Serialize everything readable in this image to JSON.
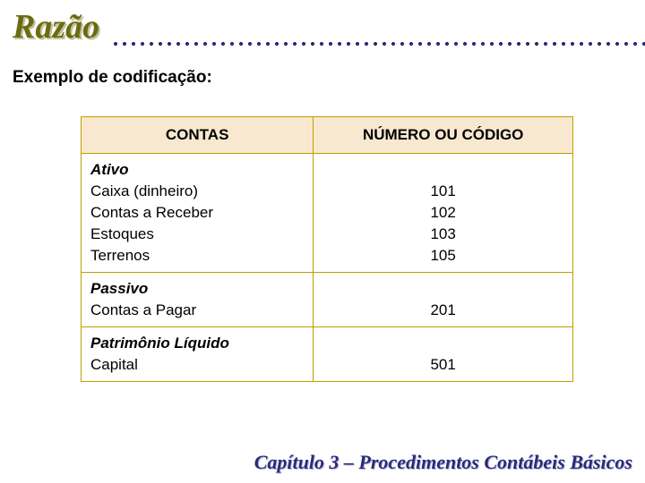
{
  "title": "Razão",
  "subtitle": "Exemplo de codificação:",
  "table": {
    "header_left": "CONTAS",
    "header_right": "NÚMERO OU CÓDIGO",
    "groups": [
      {
        "name": "Ativo",
        "rows": [
          {
            "label": "Caixa (dinheiro)",
            "code": "101"
          },
          {
            "label": "Contas a Receber",
            "code": "102"
          },
          {
            "label": "Estoques",
            "code": "103"
          },
          {
            "label": "Terrenos",
            "code": "105"
          }
        ]
      },
      {
        "name": "Passivo",
        "rows": [
          {
            "label": "Contas a Pagar",
            "code": "201"
          }
        ]
      },
      {
        "name": "Patrimônio Líquido",
        "rows": [
          {
            "label": "Capital",
            "code": "501"
          }
        ]
      }
    ]
  },
  "footer": "Capítulo 3 – Procedimentos Contábeis Básicos",
  "colors": {
    "title": "#6b6b10",
    "dot": "#2b2b7a",
    "th_bg": "#f8e8d0",
    "border": "#c0a000",
    "footer": "#2a2a7a"
  }
}
